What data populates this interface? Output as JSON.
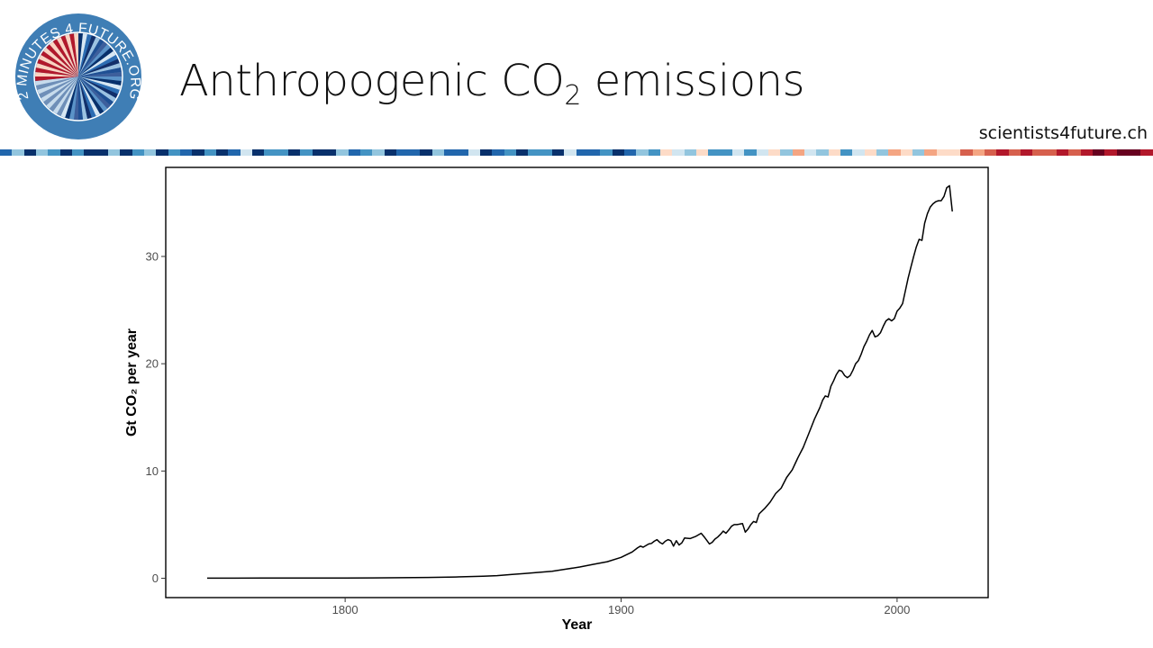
{
  "slide": {
    "title": "Anthropogenic CO",
    "title_sub": "2",
    "title_suffix": " emissions",
    "site": "scientists4future.ch"
  },
  "logo": {
    "text": "2 MINUTES 4 FUTURE.ORG",
    "ring_color": "#3f7eb5"
  },
  "colors": {
    "stripes": [
      "#08306b",
      "#2166ac",
      "#4393c3",
      "#92c5de",
      "#d1e5f0",
      "#fddbc7",
      "#f4a582",
      "#d6604d",
      "#b2182b",
      "#67001f"
    ],
    "line": "#000000"
  },
  "chart_data": {
    "type": "line",
    "xlabel": "Year",
    "ylabel": "Gt  CO₂  per year",
    "xlim": [
      1735,
      2033
    ],
    "ylim": [
      -1.8,
      38.3
    ],
    "x_ticks": [
      1800,
      1900,
      2000
    ],
    "y_ticks": [
      0,
      10,
      20,
      30
    ],
    "grid": false,
    "series": [
      {
        "x": [
          1750,
          1760,
          1770,
          1780,
          1790,
          1800,
          1810,
          1820,
          1830,
          1840,
          1850,
          1855,
          1860,
          1865,
          1870,
          1875,
          1880,
          1885,
          1890,
          1895,
          1900,
          1902,
          1904,
          1906,
          1907,
          1908,
          1910,
          1911,
          1912,
          1913,
          1914,
          1915,
          1916,
          1917,
          1918,
          1919,
          1920,
          1921,
          1922,
          1923,
          1925,
          1927,
          1929,
          1930,
          1931,
          1932,
          1933,
          1934,
          1935,
          1936,
          1937,
          1938,
          1939,
          1940,
          1941,
          1942,
          1943,
          1944,
          1945,
          1946,
          1947,
          1948,
          1949,
          1950,
          1952,
          1954,
          1956,
          1958,
          1960,
          1962,
          1964,
          1966,
          1968,
          1970,
          1972,
          1973,
          1974,
          1975,
          1976,
          1977,
          1978,
          1979,
          1980,
          1981,
          1982,
          1983,
          1984,
          1985,
          1986,
          1987,
          1988,
          1989,
          1990,
          1991,
          1992,
          1993,
          1994,
          1995,
          1996,
          1997,
          1998,
          1999,
          2000,
          2001,
          2002,
          2003,
          2004,
          2005,
          2006,
          2007,
          2008,
          2009,
          2010,
          2011,
          2012,
          2013,
          2014,
          2015,
          2016,
          2017,
          2018,
          2019,
          2020
        ],
        "y": [
          0.01,
          0.01,
          0.02,
          0.02,
          0.03,
          0.03,
          0.04,
          0.05,
          0.08,
          0.12,
          0.2,
          0.25,
          0.35,
          0.45,
          0.55,
          0.65,
          0.85,
          1.05,
          1.3,
          1.55,
          1.95,
          2.2,
          2.45,
          2.85,
          3.0,
          2.9,
          3.2,
          3.25,
          3.45,
          3.6,
          3.35,
          3.2,
          3.45,
          3.6,
          3.5,
          3.0,
          3.5,
          3.1,
          3.3,
          3.75,
          3.7,
          3.9,
          4.2,
          3.9,
          3.55,
          3.2,
          3.35,
          3.65,
          3.85,
          4.1,
          4.4,
          4.2,
          4.5,
          4.85,
          5.0,
          5.0,
          5.05,
          5.1,
          4.3,
          4.6,
          5.0,
          5.3,
          5.2,
          6.0,
          6.5,
          7.1,
          7.9,
          8.4,
          9.4,
          10.1,
          11.2,
          12.2,
          13.5,
          14.8,
          15.9,
          16.6,
          17.0,
          16.9,
          17.9,
          18.4,
          19.0,
          19.4,
          19.3,
          18.9,
          18.7,
          18.9,
          19.4,
          20.0,
          20.3,
          20.9,
          21.6,
          22.1,
          22.7,
          23.1,
          22.5,
          22.6,
          22.9,
          23.5,
          24.0,
          24.2,
          24.0,
          24.2,
          24.9,
          25.2,
          25.6,
          26.8,
          28.0,
          29.0,
          30.0,
          30.9,
          31.6,
          31.5,
          33.1,
          34.0,
          34.6,
          34.9,
          35.1,
          35.2,
          35.2,
          35.6,
          36.4,
          36.6,
          34.2
        ]
      }
    ]
  }
}
